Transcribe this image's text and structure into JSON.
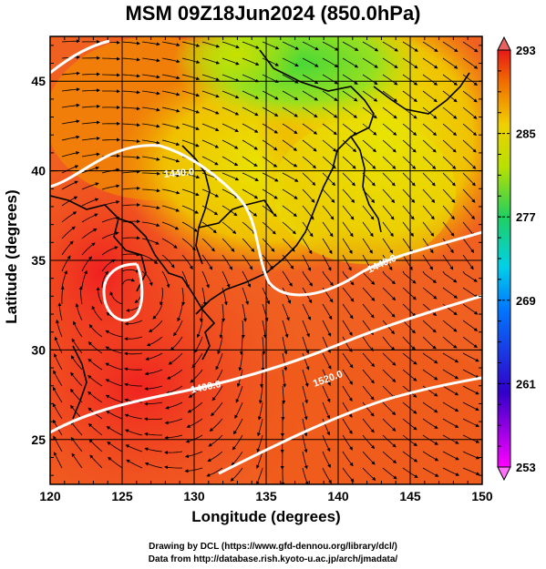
{
  "title": "MSM 09Z18Jun2024 (850.0hPa)",
  "map": {
    "xlabel": "Longitude (degrees)",
    "ylabel": "Latitude  (degrees)",
    "x_ticks": [
      "120",
      "125",
      "130",
      "135",
      "140",
      "145",
      "150"
    ],
    "y_ticks": [
      "45",
      "40",
      "35",
      "30",
      "25"
    ],
    "lon_range": [
      120,
      150
    ],
    "lat_range": [
      22.5,
      47.5
    ]
  },
  "contours": {
    "labels": [
      "1440.0",
      "1440.0",
      "1400.0",
      "1520.0"
    ],
    "color": "#ffffff"
  },
  "colorbar": {
    "tick_labels": [
      "293",
      "285",
      "277",
      "269",
      "261",
      "253"
    ],
    "min": 253,
    "max": 293
  },
  "credits": {
    "line1": "Drawing by DCL (https://www.gfd-dennou.org/library/dcl/)",
    "line2": "Data from http://database.rish.kyoto-u.ac.jp/arch/jmadata/"
  },
  "icons": [
    "streamline-arrows-icon",
    "coastline-icon"
  ]
}
